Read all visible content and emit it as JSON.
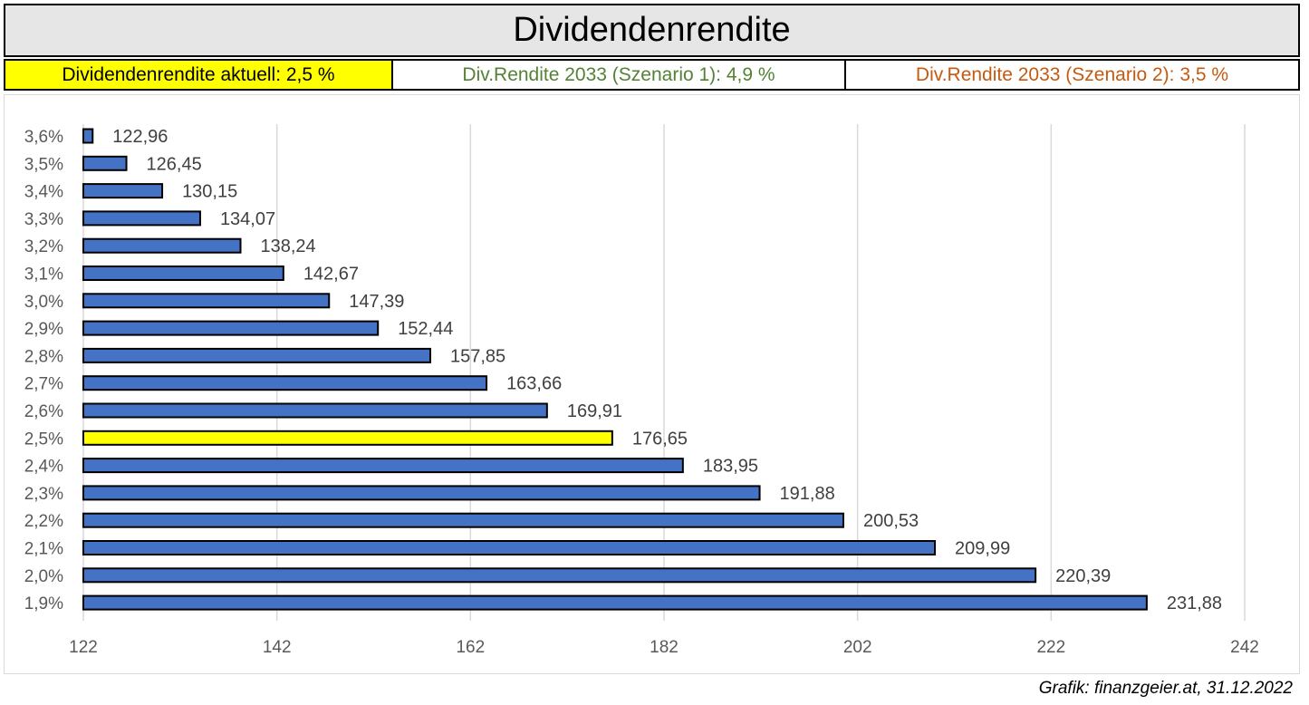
{
  "header": {
    "title": "Dividendenrendite",
    "current": "Dividendenrendite aktuell: 2,5 %",
    "scenario1": "Div.Rendite 2033 (Szenario 1): 4,9 %",
    "scenario2": "Div.Rendite 2033 (Szenario 2): 3,5 %"
  },
  "colors": {
    "bar": "#4472c4",
    "highlight_bar": "#ffff00",
    "current_box": "#ffff00",
    "scenario1_text": "#548235",
    "scenario2_text": "#c55a11",
    "title_bg": "#e7e6e6"
  },
  "credit": "Grafik: finanzgeier.at, 31.12.2022",
  "chart_data": {
    "type": "bar",
    "orientation": "horizontal",
    "categories": [
      "3,6%",
      "3,5%",
      "3,4%",
      "3,3%",
      "3,2%",
      "3,1%",
      "3,0%",
      "2,9%",
      "2,8%",
      "2,7%",
      "2,6%",
      "2,5%",
      "2,4%",
      "2,3%",
      "2,2%",
      "2,1%",
      "2,0%",
      "1,9%"
    ],
    "values": [
      122.96,
      126.45,
      130.15,
      134.07,
      138.24,
      142.67,
      147.39,
      152.44,
      157.85,
      163.66,
      169.91,
      176.65,
      183.95,
      191.88,
      200.53,
      209.99,
      220.39,
      231.88
    ],
    "data_labels": [
      "122,96",
      "126,45",
      "130,15",
      "134,07",
      "138,24",
      "142,67",
      "147,39",
      "152,44",
      "157,85",
      "163,66",
      "169,91",
      "176,65",
      "183,95",
      "191,88",
      "200,53",
      "209,99",
      "220,39",
      "231,88"
    ],
    "highlight_category": "2,5%",
    "xlim": [
      122,
      242
    ],
    "xticks": [
      "122",
      "142",
      "162",
      "182",
      "202",
      "222",
      "242"
    ],
    "grid": "vertical",
    "title": "",
    "xlabel": "",
    "ylabel": ""
  }
}
